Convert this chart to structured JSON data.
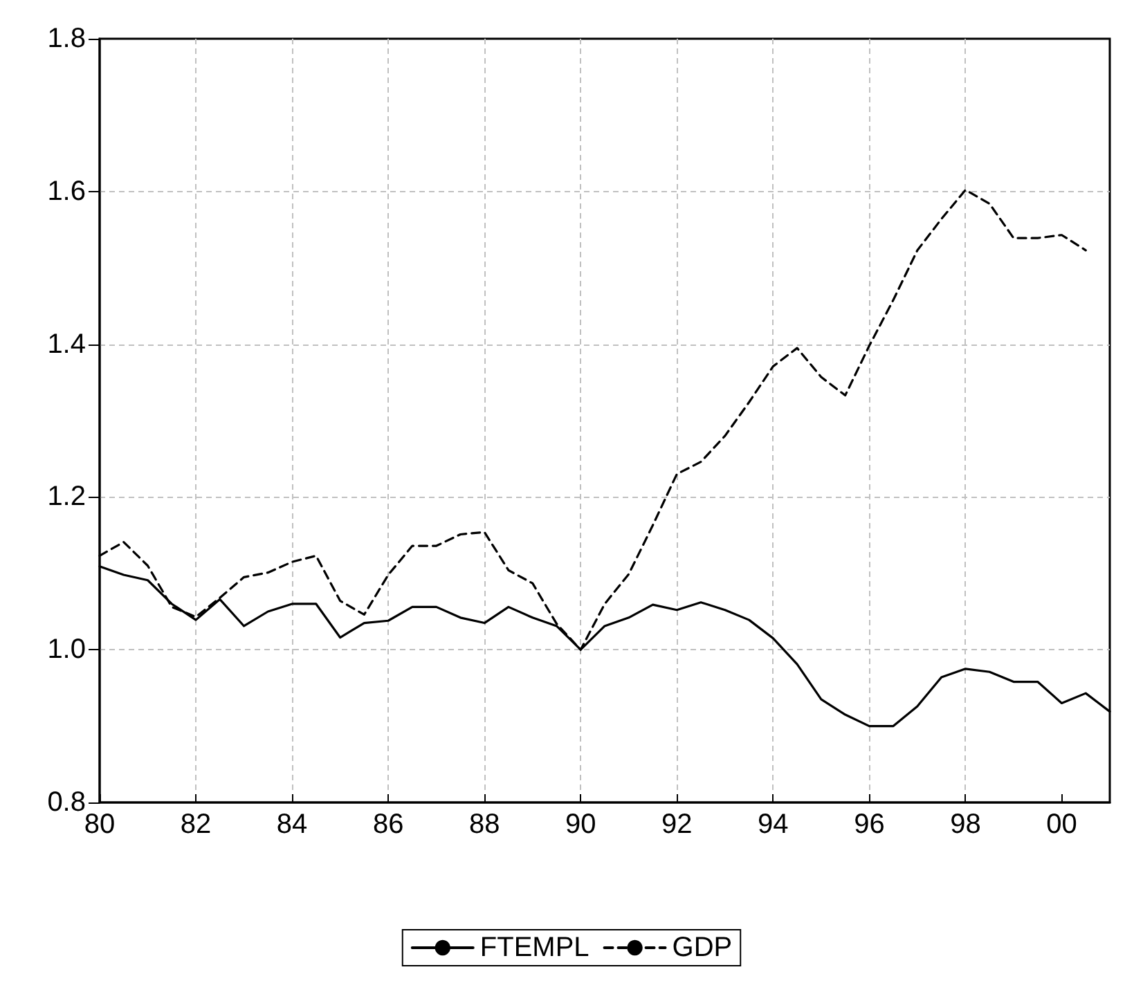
{
  "chart_data": {
    "type": "line",
    "x": [
      1980,
      1980.5,
      1981,
      1981.5,
      1982,
      1982.5,
      1983,
      1983.5,
      1984,
      1984.5,
      1985,
      1985.5,
      1986,
      1986.5,
      1987,
      1987.5,
      1988,
      1988.5,
      1989,
      1989.5,
      1990,
      1990.5,
      1991,
      1991.5,
      1992,
      1992.5,
      1993,
      1993.5,
      1994,
      1994.5,
      1995,
      1995.5,
      1996,
      1996.5,
      1997,
      1997.5,
      1998,
      1998.5,
      1999,
      1999.5,
      2000,
      2000.5,
      2001
    ],
    "series": [
      {
        "name": "FTEMPL",
        "color": "#000000",
        "line_style": "solid",
        "values": [
          1.109,
          1.098,
          1.091,
          1.06,
          1.039,
          1.066,
          1.031,
          1.05,
          1.06,
          1.06,
          1.016,
          1.035,
          1.038,
          1.056,
          1.056,
          1.042,
          1.035,
          1.056,
          1.042,
          1.031,
          1.0,
          1.031,
          1.042,
          1.059,
          1.052,
          1.062,
          1.052,
          1.039,
          1.015,
          0.981,
          0.935,
          0.915,
          0.9,
          0.9,
          0.926,
          0.964,
          0.975,
          0.971,
          0.958,
          0.958,
          0.93,
          0.943,
          0.919
        ]
      },
      {
        "name": "GDP",
        "color": "#000000",
        "line_style": "dashed",
        "values": [
          1.123,
          1.141,
          1.11,
          1.056,
          1.043,
          1.068,
          1.095,
          1.101,
          1.115,
          1.123,
          1.064,
          1.046,
          1.098,
          1.136,
          1.136,
          1.151,
          1.154,
          1.104,
          1.087,
          1.034,
          1.0,
          1.06,
          1.099,
          1.163,
          1.23,
          1.246,
          1.28,
          1.324,
          1.371,
          1.395,
          1.357,
          1.333,
          1.398,
          1.458,
          1.523,
          1.564,
          1.602,
          1.584,
          1.539,
          1.539,
          1.543,
          1.523,
          null
        ]
      }
    ],
    "xlim": [
      1980,
      2001
    ],
    "xticks": [
      {
        "value": 1980,
        "label": "80"
      },
      {
        "value": 1982,
        "label": "82"
      },
      {
        "value": 1984,
        "label": "84"
      },
      {
        "value": 1986,
        "label": "86"
      },
      {
        "value": 1988,
        "label": "88"
      },
      {
        "value": 1990,
        "label": "90"
      },
      {
        "value": 1992,
        "label": "92"
      },
      {
        "value": 1994,
        "label": "94"
      },
      {
        "value": 1996,
        "label": "96"
      },
      {
        "value": 1998,
        "label": "98"
      },
      {
        "value": 2000,
        "label": "00"
      }
    ],
    "ylim": [
      0.8,
      1.8
    ],
    "yticks": [
      0.8,
      {
        "value": 1,
        "label": "1.0"
      },
      1.2,
      1.4,
      1.6,
      1.8
    ],
    "grid": true,
    "legend": "bottom",
    "marker": "none"
  }
}
